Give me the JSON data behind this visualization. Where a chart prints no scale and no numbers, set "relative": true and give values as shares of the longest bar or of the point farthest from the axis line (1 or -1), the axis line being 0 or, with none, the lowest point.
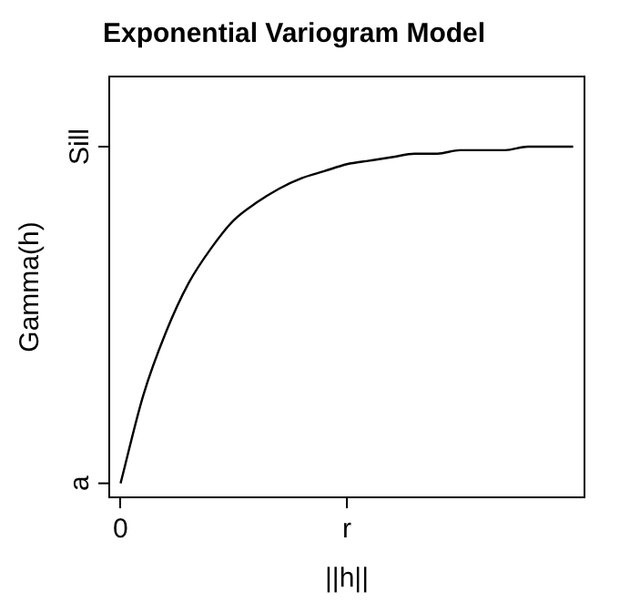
{
  "chart_data": {
    "type": "line",
    "title": "Exponential Variogram Model",
    "xlabel": "||h||",
    "ylabel": "Gamma(h)",
    "relative": true,
    "categories": [
      "0",
      null,
      null,
      null,
      null,
      null,
      null,
      null,
      null,
      null,
      "r",
      null,
      null,
      null,
      null,
      null,
      null,
      null,
      null,
      null,
      null
    ],
    "series": [
      {
        "color": "#000000",
        "values": [
          0.04,
          0.29,
          0.47,
          0.61,
          0.71,
          0.79,
          0.84,
          0.88,
          0.91,
          0.93,
          0.95,
          0.96,
          0.97,
          0.98,
          0.98,
          0.99,
          0.99,
          0.99,
          1.0,
          1.0,
          1.0
        ]
      }
    ],
    "annotations": [
      "a",
      "Sill"
    ],
    "marker": "none",
    "line_style": "solid",
    "legend": false
  }
}
